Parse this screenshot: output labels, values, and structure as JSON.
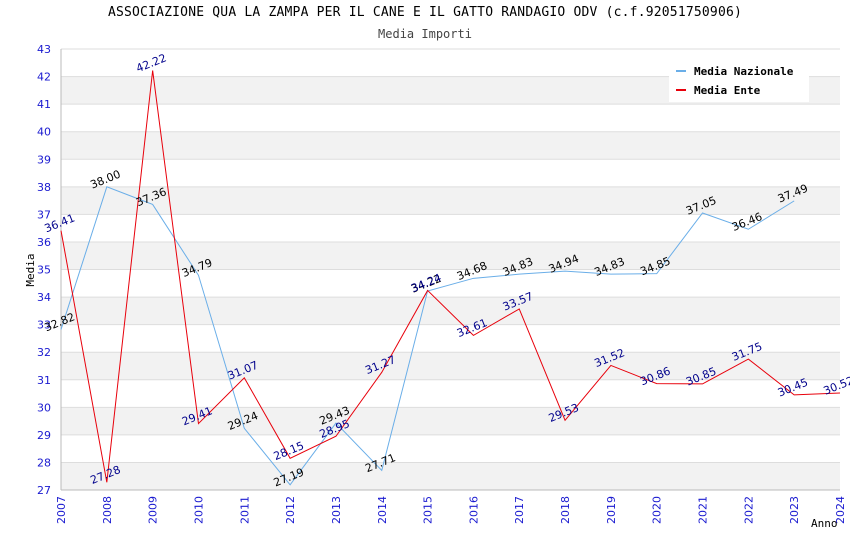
{
  "chart_data": {
    "type": "line",
    "title": "ASSOCIAZIONE QUA LA ZAMPA PER IL CANE E IL GATTO RANDAGIO ODV (c.f.92051750906)",
    "subtitle": "Media Importi",
    "xlabel": "Anno",
    "ylabel": "Media",
    "x": [
      2007,
      2008,
      2009,
      2010,
      2011,
      2012,
      2013,
      2014,
      2015,
      2016,
      2017,
      2018,
      2019,
      2020,
      2021,
      2022,
      2023,
      2024
    ],
    "ylim": [
      27,
      43
    ],
    "yticks": [
      27,
      28,
      29,
      30,
      31,
      32,
      33,
      34,
      35,
      36,
      37,
      38,
      39,
      40,
      41,
      42,
      43
    ],
    "grid": true,
    "legend_position": "top-right",
    "series": [
      {
        "name": "Media Nazionale",
        "color": "#6aaee8",
        "label_color": "#000000",
        "values": [
          32.82,
          38.0,
          37.36,
          34.79,
          29.24,
          27.19,
          29.43,
          27.71,
          34.22,
          34.68,
          34.83,
          34.94,
          34.83,
          34.85,
          37.05,
          36.46,
          37.49,
          null
        ],
        "labels": [
          "32.82",
          "38.00",
          "37.36",
          "34.79",
          "29.24",
          "27.19",
          "29.43",
          "27.71",
          "34.22",
          "34.68",
          "34.83",
          "34.94",
          "34.83",
          "34.85",
          "37.05",
          "36.46",
          "37.49",
          ""
        ]
      },
      {
        "name": "Media Ente",
        "color": "#e8000b",
        "label_color": "#00008b",
        "values": [
          36.41,
          27.28,
          42.22,
          29.41,
          31.07,
          28.15,
          28.95,
          31.27,
          34.24,
          32.61,
          33.57,
          29.53,
          31.52,
          30.86,
          30.85,
          31.75,
          30.45,
          30.52
        ],
        "labels": [
          "36.41",
          "27.28",
          "42.22",
          "29.41",
          "31.07",
          "28.15",
          "28.95",
          "31.27",
          "34.24",
          "32.61",
          "33.57",
          "29.53",
          "31.52",
          "30.86",
          "30.85",
          "31.75",
          "30.45",
          "30.52"
        ]
      }
    ]
  }
}
